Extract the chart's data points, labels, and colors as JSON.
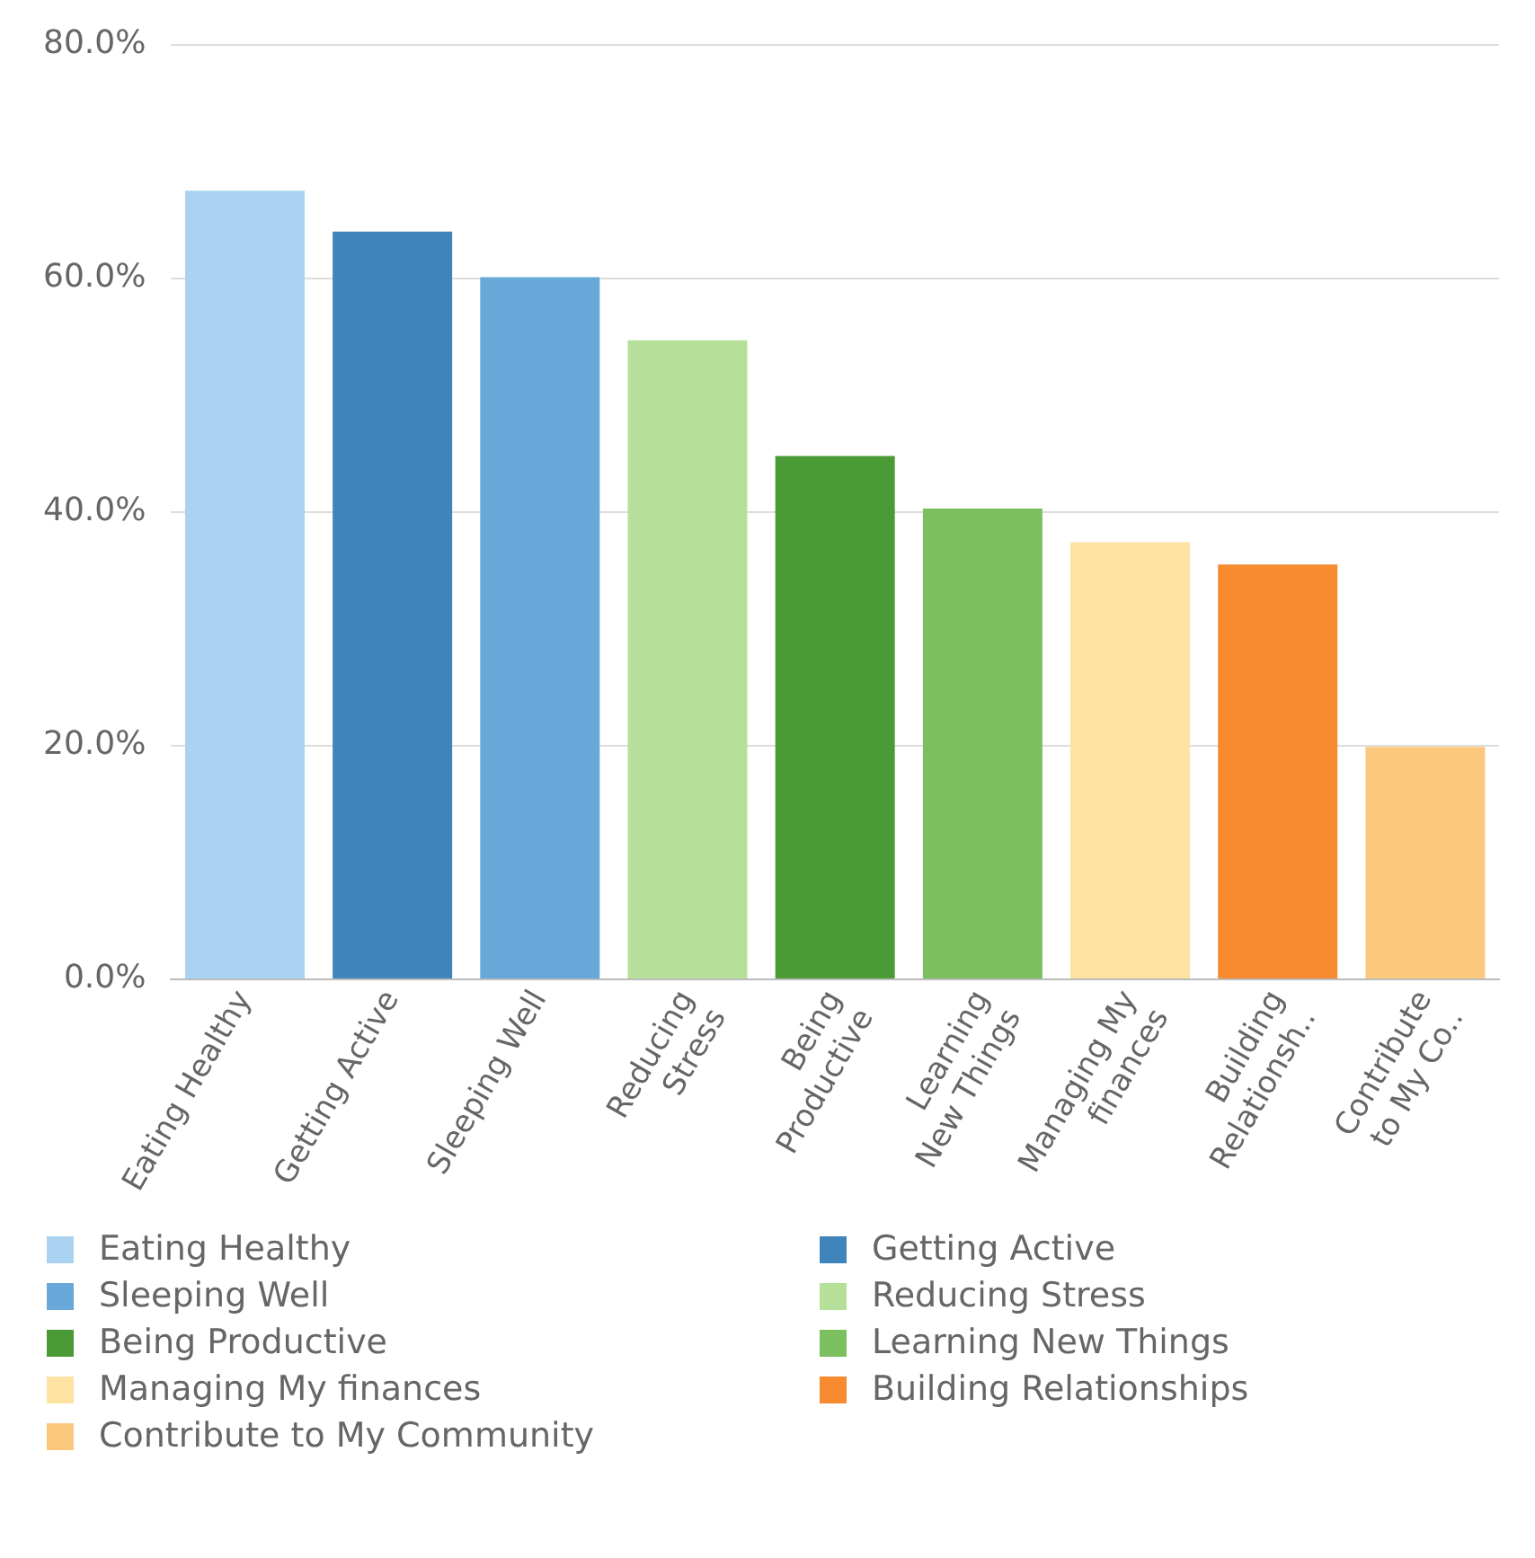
{
  "chart_data": {
    "type": "bar",
    "categories": [
      "Eating Healthy",
      "Getting Active",
      "Sleeping Well",
      "Reducing Stress",
      "Being Productive",
      "Learning New Things",
      "Managing My finances",
      "Building Relationsh..",
      "Contribute to My Co.."
    ],
    "series": [
      {
        "name": "Eating Healthy",
        "color": "#a9d3f1",
        "values": [
          67.5,
          null,
          null,
          null,
          null,
          null,
          null,
          null,
          null
        ]
      },
      {
        "name": "Getting Active",
        "color": "#3f84bb",
        "values": [
          null,
          64.0,
          null,
          null,
          null,
          null,
          null,
          null,
          null
        ]
      },
      {
        "name": "Sleeping Well",
        "color": "#68a9d9",
        "values": [
          null,
          null,
          60.1,
          null,
          null,
          null,
          null,
          null,
          null
        ]
      },
      {
        "name": "Reducing Stress",
        "color": "#b6e09a",
        "values": [
          null,
          null,
          null,
          54.7,
          null,
          null,
          null,
          null,
          null
        ]
      },
      {
        "name": "Being Productive",
        "color": "#4a9a35",
        "values": [
          null,
          null,
          null,
          null,
          44.8,
          null,
          null,
          null,
          null
        ]
      },
      {
        "name": "Learning New Things",
        "color": "#7bbf5e",
        "values": [
          null,
          null,
          null,
          null,
          null,
          40.3,
          null,
          null,
          null
        ]
      },
      {
        "name": "Managing My finances",
        "color": "#fde2a2",
        "values": [
          null,
          null,
          null,
          null,
          null,
          null,
          37.4,
          null,
          null
        ]
      },
      {
        "name": "Building Relationships",
        "color": "#f68b30",
        "values": [
          null,
          null,
          null,
          null,
          null,
          null,
          null,
          35.5,
          null
        ]
      },
      {
        "name": "Contribute to My Community",
        "color": "#fcc87e",
        "values": [
          null,
          null,
          null,
          null,
          null,
          null,
          null,
          null,
          19.9
        ]
      }
    ],
    "ylim": [
      0,
      80
    ],
    "yticks": [
      {
        "value": 0,
        "label": "0.0%"
      },
      {
        "value": 20,
        "label": "20.0%"
      },
      {
        "value": 40,
        "label": "40.0%"
      },
      {
        "value": 60,
        "label": "60.0%"
      },
      {
        "value": 80,
        "label": "80.0%"
      }
    ],
    "grid": "y",
    "legend": "bottom"
  }
}
